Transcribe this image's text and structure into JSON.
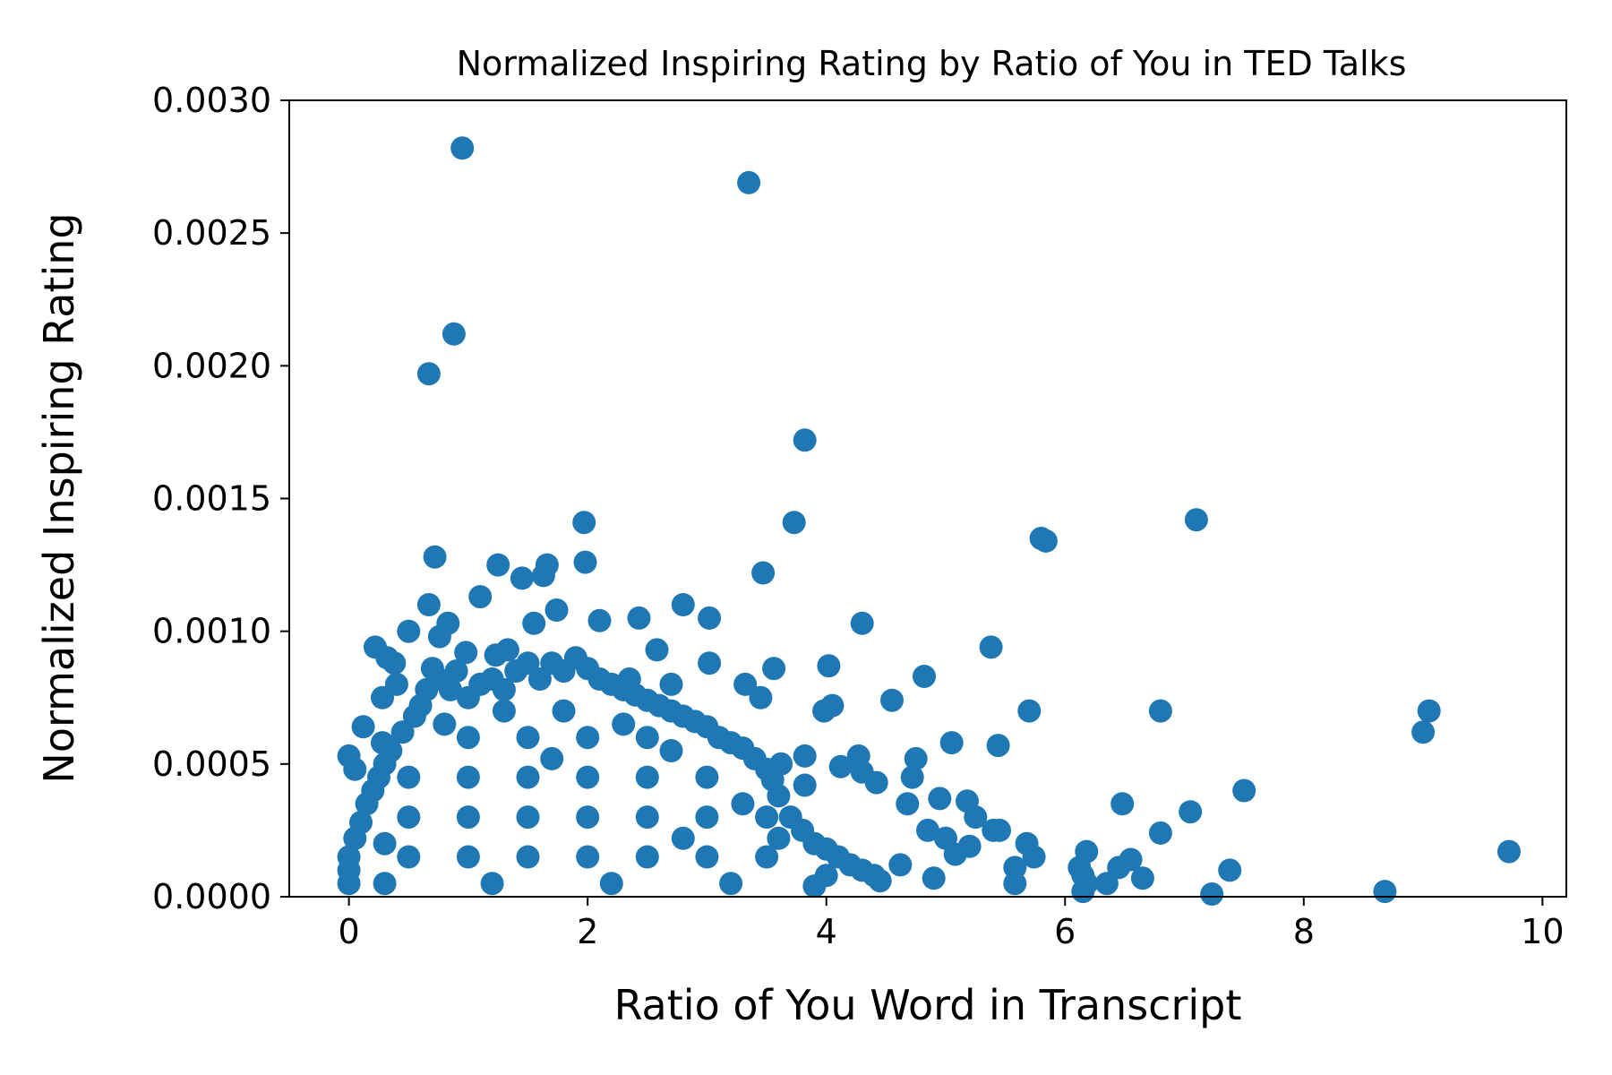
{
  "chart_data": {
    "type": "scatter",
    "title": "Normalized Inspiring Rating by Ratio of You in TED Talks",
    "xlabel": "Ratio of You Word in Transcript",
    "ylabel": "Normalized Inspiring Rating",
    "xlim": [
      -0.5,
      10.2
    ],
    "ylim": [
      0.0,
      0.003
    ],
    "x_ticks": [
      0,
      2,
      4,
      6,
      8,
      10
    ],
    "x_tick_labels": [
      "0",
      "2",
      "4",
      "6",
      "8",
      "10"
    ],
    "y_ticks": [
      0.0,
      0.0005,
      0.001,
      0.0015,
      0.002,
      0.0025,
      0.003
    ],
    "y_tick_labels": [
      "0.0000",
      "0.0005",
      "0.0010",
      "0.0015",
      "0.0020",
      "0.0025",
      "0.0030"
    ],
    "grid": false,
    "color": "#1f77b4",
    "points": [
      [
        0.95,
        0.00282
      ],
      [
        3.35,
        0.00269
      ],
      [
        0.88,
        0.00212
      ],
      [
        0.67,
        0.00197
      ],
      [
        3.82,
        0.00172
      ],
      [
        1.97,
        0.00141
      ],
      [
        3.73,
        0.00141
      ],
      [
        7.1,
        0.00142
      ],
      [
        5.8,
        0.00135
      ],
      [
        5.84,
        0.00134
      ],
      [
        0.72,
        0.00128
      ],
      [
        1.25,
        0.00125
      ],
      [
        1.66,
        0.00125
      ],
      [
        1.98,
        0.00126
      ],
      [
        1.63,
        0.00121
      ],
      [
        1.45,
        0.0012
      ],
      [
        3.47,
        0.00122
      ],
      [
        1.1,
        0.00113
      ],
      [
        0.67,
        0.0011
      ],
      [
        2.8,
        0.0011
      ],
      [
        1.74,
        0.00108
      ],
      [
        0.83,
        0.00103
      ],
      [
        1.55,
        0.00103
      ],
      [
        2.1,
        0.00104
      ],
      [
        2.43,
        0.00105
      ],
      [
        3.02,
        0.00105
      ],
      [
        4.3,
        0.00103
      ],
      [
        0.5,
        0.001
      ],
      [
        0.76,
        0.00098
      ],
      [
        0.22,
        0.00094
      ],
      [
        5.38,
        0.00094
      ],
      [
        0.32,
        0.0009
      ],
      [
        0.98,
        0.00092
      ],
      [
        1.23,
        0.00091
      ],
      [
        1.33,
        0.00093
      ],
      [
        0.38,
        0.00088
      ],
      [
        3.02,
        0.00088
      ],
      [
        4.02,
        0.00087
      ],
      [
        2.58,
        0.00093
      ],
      [
        3.56,
        0.00086
      ],
      [
        0.7,
        0.00086
      ],
      [
        0.9,
        0.00085
      ],
      [
        2.35,
        0.00082
      ],
      [
        4.82,
        0.00083
      ],
      [
        3.32,
        0.0008
      ],
      [
        0.4,
        0.0008
      ],
      [
        2.7,
        0.0008
      ],
      [
        0.28,
        0.00075
      ],
      [
        4.55,
        0.00074
      ],
      [
        3.45,
        0.00075
      ],
      [
        4.05,
        0.00072
      ],
      [
        3.98,
        0.0007
      ],
      [
        5.7,
        0.0007
      ],
      [
        6.8,
        0.0007
      ],
      [
        9.05,
        0.0007
      ],
      [
        0.12,
        0.00064
      ],
      [
        9.0,
        0.00062
      ],
      [
        5.05,
        0.00058
      ],
      [
        5.44,
        0.00057
      ],
      [
        0.28,
        0.00058
      ],
      [
        0.0,
        0.00053
      ],
      [
        0.05,
        0.00048
      ],
      [
        3.82,
        0.00053
      ],
      [
        4.27,
        0.00053
      ],
      [
        4.75,
        0.00052
      ],
      [
        3.62,
        0.0005
      ],
      [
        4.12,
        0.00049
      ],
      [
        4.3,
        0.00047
      ],
      [
        4.72,
        0.00045
      ],
      [
        4.42,
        0.00043
      ],
      [
        3.82,
        0.00042
      ],
      [
        7.5,
        0.0004
      ],
      [
        4.95,
        0.00037
      ],
      [
        5.18,
        0.00036
      ],
      [
        4.68,
        0.00035
      ],
      [
        6.48,
        0.00035
      ],
      [
        7.05,
        0.00032
      ],
      [
        5.25,
        0.0003
      ],
      [
        4.85,
        0.00025
      ],
      [
        5.4,
        0.00025
      ],
      [
        5.45,
        0.00025
      ],
      [
        5.0,
        0.00022
      ],
      [
        5.2,
        0.00019
      ],
      [
        6.8,
        0.00024
      ],
      [
        5.68,
        0.0002
      ],
      [
        6.18,
        0.00017
      ],
      [
        5.08,
        0.00016
      ],
      [
        5.74,
        0.00015
      ],
      [
        9.72,
        0.00017
      ],
      [
        4.62,
        0.00012
      ],
      [
        5.58,
        0.00011
      ],
      [
        6.12,
        0.00011
      ],
      [
        6.45,
        0.00011
      ],
      [
        6.55,
        0.00014
      ],
      [
        7.38,
        0.0001
      ],
      [
        4.9,
        7e-05
      ],
      [
        5.58,
        5e-05
      ],
      [
        6.15,
        8e-05
      ],
      [
        6.18,
        5e-05
      ],
      [
        6.65,
        7e-05
      ],
      [
        6.35,
        5e-05
      ],
      [
        6.15,
        2e-05
      ],
      [
        4.45,
        6e-05
      ],
      [
        7.23,
        1e-05
      ],
      [
        8.68,
        2e-05
      ],
      [
        0.0,
        5e-05
      ],
      [
        0.0,
        0.0001
      ],
      [
        0.0,
        0.00015
      ],
      [
        0.05,
        0.00022
      ],
      [
        0.1,
        0.00028
      ],
      [
        0.15,
        0.00035
      ],
      [
        0.2,
        0.0004
      ],
      [
        0.25,
        0.00045
      ],
      [
        0.3,
        0.0005
      ],
      [
        0.35,
        0.00055
      ],
      [
        0.45,
        0.00062
      ],
      [
        0.55,
        0.00068
      ],
      [
        0.6,
        0.00072
      ],
      [
        0.65,
        0.00078
      ],
      [
        0.75,
        0.00082
      ],
      [
        0.85,
        0.00078
      ],
      [
        1.0,
        0.00075
      ],
      [
        1.1,
        0.0008
      ],
      [
        1.2,
        0.00082
      ],
      [
        1.3,
        0.00078
      ],
      [
        1.4,
        0.00085
      ],
      [
        1.5,
        0.00088
      ],
      [
        1.6,
        0.00082
      ],
      [
        1.7,
        0.00088
      ],
      [
        1.8,
        0.00085
      ],
      [
        1.9,
        0.0009
      ],
      [
        2.0,
        0.00086
      ],
      [
        2.1,
        0.00082
      ],
      [
        2.2,
        0.0008
      ],
      [
        2.3,
        0.00078
      ],
      [
        2.4,
        0.00076
      ],
      [
        2.5,
        0.00074
      ],
      [
        2.6,
        0.00072
      ],
      [
        2.7,
        0.0007
      ],
      [
        2.8,
        0.00068
      ],
      [
        2.9,
        0.00066
      ],
      [
        3.0,
        0.00064
      ],
      [
        3.1,
        0.0006
      ],
      [
        3.2,
        0.00058
      ],
      [
        3.3,
        0.00056
      ],
      [
        3.4,
        0.00052
      ],
      [
        3.5,
        0.00048
      ],
      [
        3.55,
        0.00044
      ],
      [
        3.6,
        0.00038
      ],
      [
        3.7,
        0.0003
      ],
      [
        3.8,
        0.00025
      ],
      [
        3.9,
        0.0002
      ],
      [
        4.0,
        0.00018
      ],
      [
        4.1,
        0.00015
      ],
      [
        4.2,
        0.00012
      ],
      [
        4.3,
        0.0001
      ],
      [
        4.4,
        8e-05
      ],
      [
        0.5,
        0.0003
      ],
      [
        1.0,
        0.0003
      ],
      [
        1.5,
        0.0003
      ],
      [
        2.0,
        0.0003
      ],
      [
        2.5,
        0.0003
      ],
      [
        3.0,
        0.0003
      ],
      [
        3.5,
        0.0003
      ],
      [
        0.5,
        0.00015
      ],
      [
        1.0,
        0.00015
      ],
      [
        1.5,
        0.00015
      ],
      [
        2.0,
        0.00015
      ],
      [
        2.5,
        0.00015
      ],
      [
        3.0,
        0.00015
      ],
      [
        3.5,
        0.00015
      ],
      [
        4.0,
        8e-05
      ],
      [
        0.5,
        0.00045
      ],
      [
        1.0,
        0.00045
      ],
      [
        1.5,
        0.00045
      ],
      [
        2.0,
        0.00045
      ],
      [
        2.5,
        0.00045
      ],
      [
        3.0,
        0.00045
      ],
      [
        1.0,
        0.0006
      ],
      [
        1.5,
        0.0006
      ],
      [
        2.0,
        0.0006
      ],
      [
        2.5,
        0.0006
      ],
      [
        0.8,
        0.00065
      ],
      [
        1.3,
        0.0007
      ],
      [
        1.8,
        0.0007
      ],
      [
        2.3,
        0.00065
      ],
      [
        0.3,
        0.0002
      ],
      [
        0.3,
        5e-05
      ],
      [
        1.2,
        5e-05
      ],
      [
        2.2,
        5e-05
      ],
      [
        3.2,
        5e-05
      ],
      [
        3.9,
        4e-05
      ],
      [
        2.8,
        0.00022
      ],
      [
        3.3,
        0.00035
      ],
      [
        1.7,
        0.00052
      ],
      [
        2.7,
        0.00055
      ],
      [
        3.6,
        0.00022
      ]
    ]
  }
}
